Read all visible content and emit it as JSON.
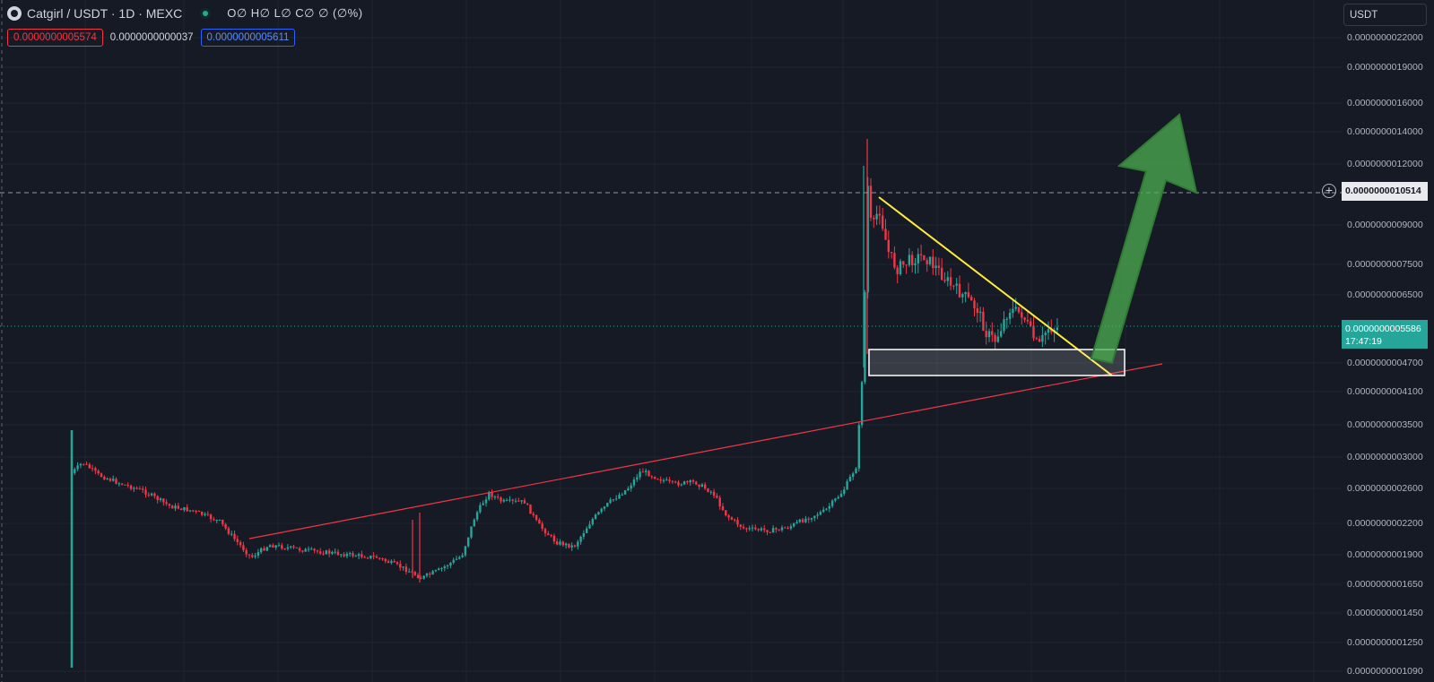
{
  "header": {
    "symbol": "Catgirl / USDT · 1D · MEXC",
    "ohlc_placeholder": "O∅ H∅ L∅ C∅ ∅ (∅%)",
    "bid": "0.0000000005574",
    "spread": "0.0000000000037",
    "ask": "0.0000000005611"
  },
  "currency_button": "USDT",
  "price_axis": {
    "ticks": [
      "0.0000000022000",
      "0.0000000019000",
      "0.0000000016000",
      "0.0000000014000",
      "0.0000000012000",
      "0.0000000009000",
      "0.0000000007500",
      "0.0000000006500",
      "0.0000000004700",
      "0.0000000004100",
      "0.0000000003500",
      "0.0000000003000",
      "0.0000000002600",
      "0.0000000002200",
      "0.0000000001900",
      "0.0000000001650",
      "0.0000000001450",
      "0.0000000001250",
      "0.0000000001090"
    ],
    "crosshair_label": "0.0000000010514",
    "last_price_label": "0.0000000005586",
    "countdown": "17:47:19"
  },
  "colors": {
    "background": "#161a25",
    "up": "#26a69a",
    "down": "#f23645",
    "trendline_support": "#f23645",
    "trendline_resistance": "#ffeb3b",
    "arrow": "#4caf50"
  },
  "chart_data": {
    "type": "candlestick",
    "title": "Catgirl / USDT · 1D · MEXC",
    "y_scale": "log",
    "ylim": [
      1.07e-10,
      2.3e-10
    ],
    "last_price": 5.586e-10,
    "crosshair_price": 1.0514e-09,
    "close_series_approx": [
      2.8e-10,
      2.9e-10,
      2.7e-10,
      2.6e-10,
      2.5e-10,
      2.4e-10,
      2.3e-10,
      2.2e-10,
      2.1e-10,
      1.9e-10,
      1.8e-10,
      1.85e-10,
      1.8e-10,
      1.78e-10,
      1.75e-10,
      1.7e-10,
      1.68e-10,
      1.7e-10,
      1.75e-10,
      1.8e-10,
      1.95e-10,
      2.2e-10,
      2.4e-10,
      2.5e-10,
      2.6e-10,
      2.45e-10,
      2.2e-10,
      2e-10,
      1.9e-10,
      1.95e-10,
      2.1e-10,
      2.3e-10,
      2.45e-10,
      2.6e-10,
      2.75e-10,
      2.9e-10,
      2.8e-10,
      2.7e-10,
      2.65e-10,
      2.6e-10,
      2.4e-10,
      2.2e-10,
      2.05e-10,
      2e-10,
      2.05e-10,
      2.1e-10,
      2.15e-10,
      2.2e-10,
      2.3e-10,
      2.4e-10,
      2.6e-10,
      2.7e-10,
      2.9e-10,
      3e-10,
      3.4e-10,
      1.1e-09,
      1.25e-09,
      9.5e-10,
      8.5e-10,
      8e-10,
      7.5e-10,
      7.8e-10,
      8e-10,
      7.2e-10,
      6.8e-10,
      6.6e-10,
      6.5e-10,
      6e-10,
      5.5e-10,
      5.8e-10,
      6.2e-10,
      6e-10,
      5.7e-10,
      5.2e-10,
      5.6e-10,
      5.7e-10,
      5.586e-10
    ],
    "annotations": {
      "support_trendline": "rising red line",
      "resistance_trendline": "falling yellow line",
      "demand_zone_price_range": [
        4.5e-10,
        5e-10
      ],
      "projection_arrow": "green arrow pointing up"
    }
  }
}
